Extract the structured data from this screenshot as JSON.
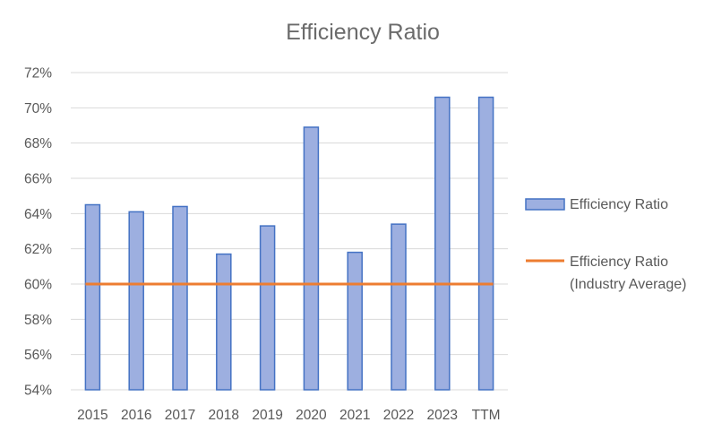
{
  "chart_data": {
    "type": "bar",
    "title": "Efficiency Ratio",
    "categories": [
      "2015",
      "2016",
      "2017",
      "2018",
      "2019",
      "2020",
      "2021",
      "2022",
      "2023",
      "TTM"
    ],
    "series": [
      {
        "name": "Efficiency Ratio",
        "type": "bar",
        "values": [
          64.5,
          64.1,
          64.4,
          61.7,
          63.3,
          68.9,
          61.8,
          63.4,
          70.6,
          70.6
        ],
        "color": "#9dafe0",
        "border_color": "#4472c4"
      },
      {
        "name": "Efficiency Ratio (Industry Average)",
        "legend_lines": [
          "Efficiency Ratio",
          "(Industry Average)"
        ],
        "type": "line",
        "values": [
          60,
          60,
          60,
          60,
          60,
          60,
          60,
          60,
          60,
          60
        ],
        "color": "#ed7d31"
      }
    ],
    "ylim": [
      54,
      72
    ],
    "y_ticks": [
      "54%",
      "56%",
      "58%",
      "60%",
      "62%",
      "64%",
      "66%",
      "68%",
      "70%",
      "72%"
    ],
    "grid": true,
    "legend_position": "right"
  }
}
